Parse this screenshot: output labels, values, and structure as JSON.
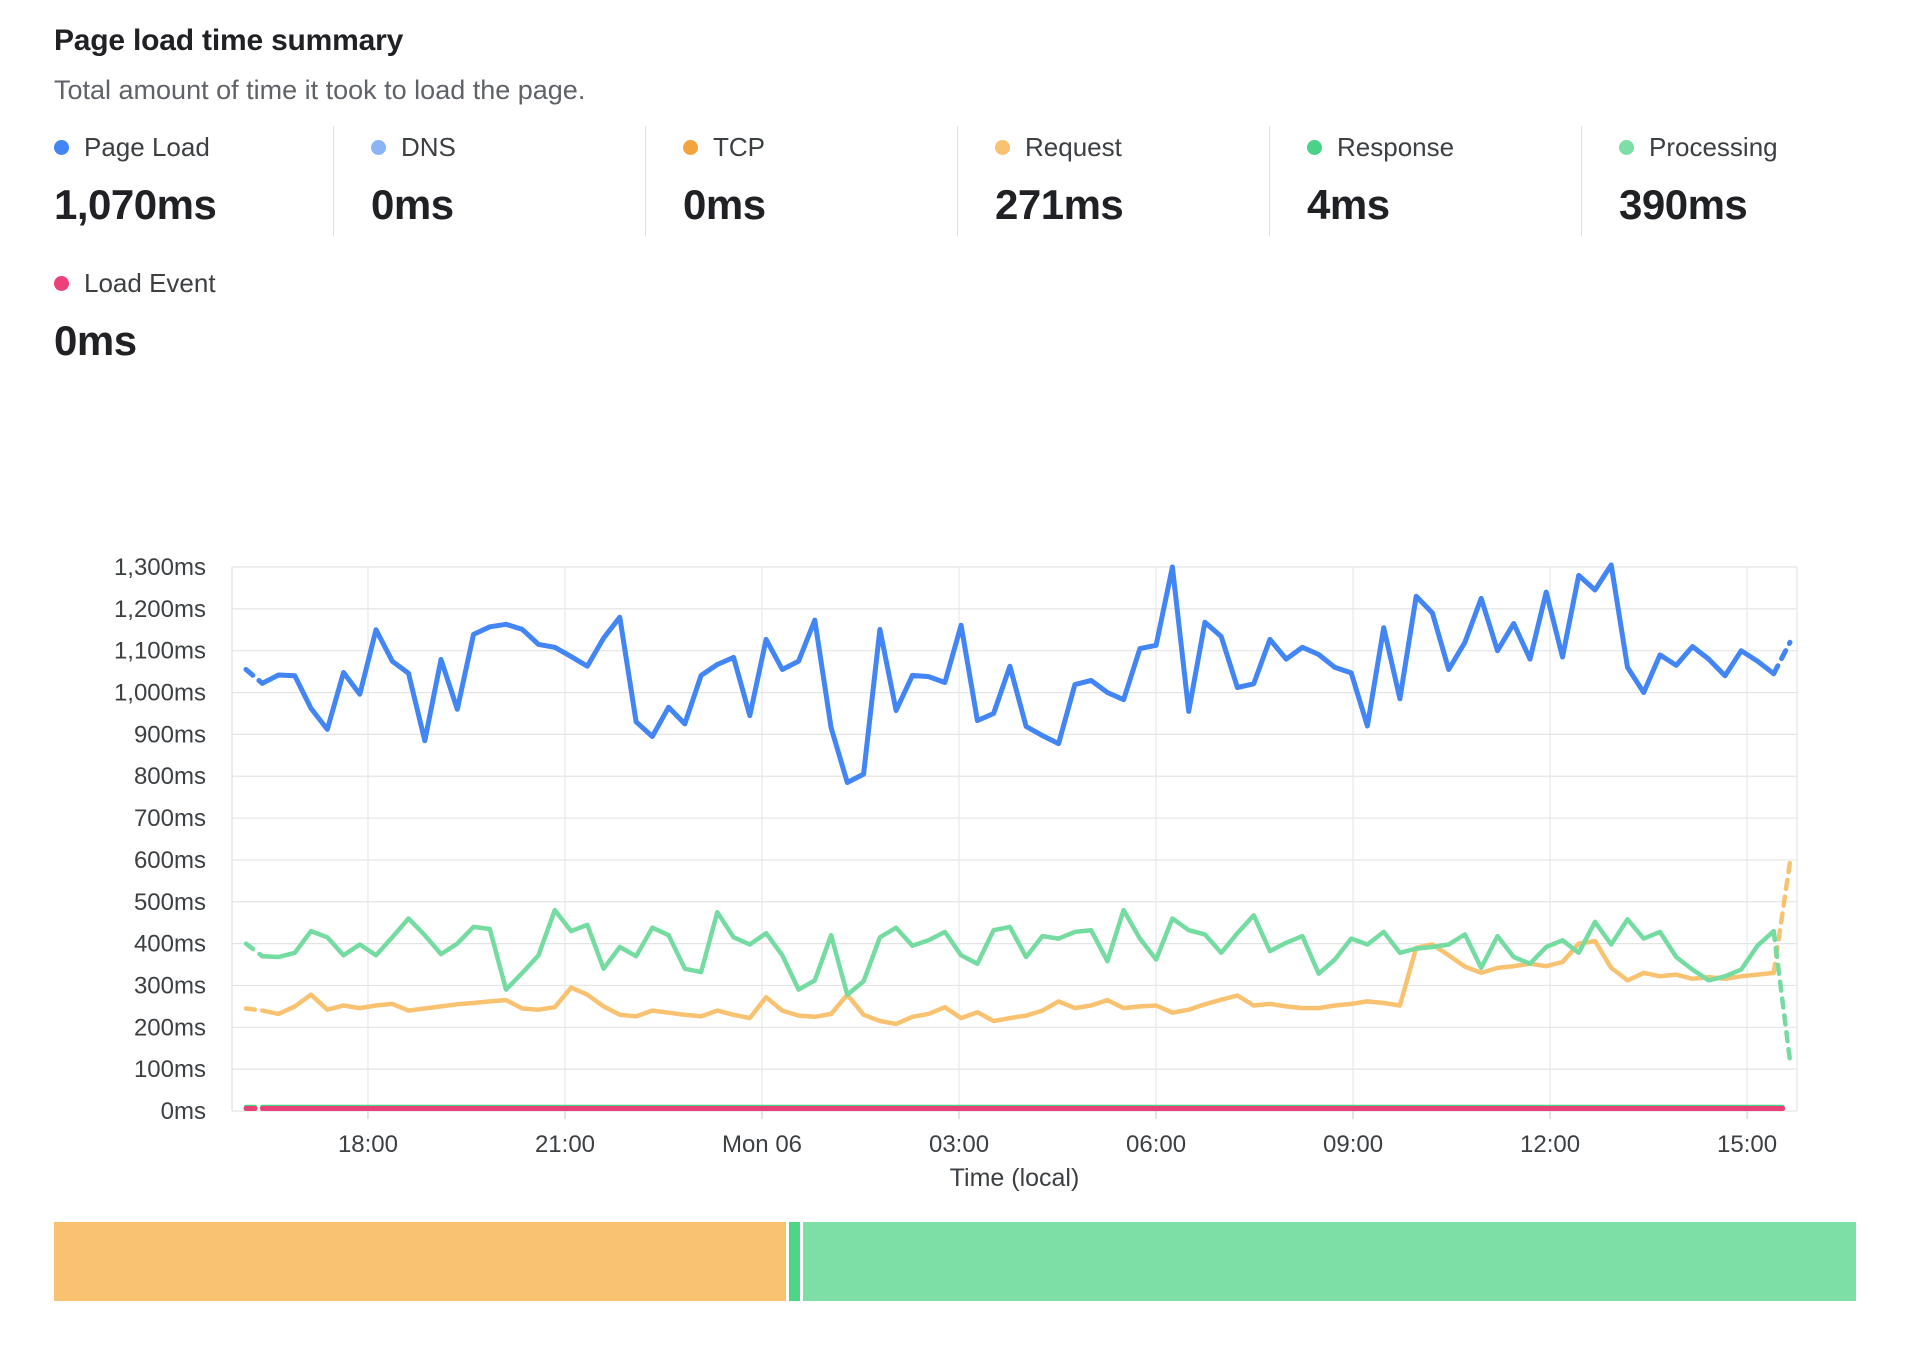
{
  "header": {
    "title": "Page load time summary",
    "subtitle": "Total amount of time it took to load the page."
  },
  "stats": [
    {
      "id": "page-load",
      "label": "Page Load",
      "value": "1,070ms",
      "color": "#4285f4"
    },
    {
      "id": "dns",
      "label": "DNS",
      "value": "0ms",
      "color": "#8ab4f8"
    },
    {
      "id": "tcp",
      "label": "TCP",
      "value": "0ms",
      "color": "#f5a33c"
    },
    {
      "id": "request",
      "label": "Request",
      "value": "271ms",
      "color": "#f8c271"
    },
    {
      "id": "response",
      "label": "Response",
      "value": "4ms",
      "color": "#48d386"
    },
    {
      "id": "processing",
      "label": "Processing",
      "value": "390ms",
      "color": "#7ddfa5"
    }
  ],
  "stats_row2": [
    {
      "id": "load-event",
      "label": "Load Event",
      "value": "0ms",
      "color": "#ee4079"
    }
  ],
  "chart_data": {
    "type": "line",
    "title": "Page load time summary",
    "xlabel": "Time (local)",
    "ylabel": "",
    "ylim": [
      0,
      1300
    ],
    "grid": true,
    "legend_position": "top-stats",
    "points": 96,
    "y_ticks": [
      {
        "v": 0,
        "label": "0ms"
      },
      {
        "v": 100,
        "label": "100ms"
      },
      {
        "v": 200,
        "label": "200ms"
      },
      {
        "v": 300,
        "label": "300ms"
      },
      {
        "v": 400,
        "label": "400ms"
      },
      {
        "v": 500,
        "label": "500ms"
      },
      {
        "v": 600,
        "label": "600ms"
      },
      {
        "v": 700,
        "label": "700ms"
      },
      {
        "v": 800,
        "label": "800ms"
      },
      {
        "v": 900,
        "label": "900ms"
      },
      {
        "v": 1000,
        "label": "1,000ms"
      },
      {
        "v": 1100,
        "label": "1,100ms"
      },
      {
        "v": 1200,
        "label": "1,200ms"
      },
      {
        "v": 1300,
        "label": "1,300ms"
      }
    ],
    "x_ticks": [
      {
        "label": "18:00",
        "pos": 0.079
      },
      {
        "label": "21:00",
        "pos": 0.2066
      },
      {
        "label": "Mon 06",
        "pos": 0.3342
      },
      {
        "label": "03:00",
        "pos": 0.4618
      },
      {
        "label": "06:00",
        "pos": 0.5894
      },
      {
        "label": "09:00",
        "pos": 0.717
      },
      {
        "label": "12:00",
        "pos": 0.8446
      },
      {
        "label": "15:00",
        "pos": 0.9722
      }
    ],
    "dashed_end_segments": true,
    "series": [
      {
        "id": "request",
        "name": "Request",
        "color": "#f8c271",
        "width": 4.5,
        "values": [
          245,
          240,
          232,
          250,
          278,
          242,
          252,
          246,
          252,
          256,
          240,
          245,
          250,
          255,
          258,
          262,
          265,
          245,
          242,
          248,
          295,
          278,
          250,
          230,
          226,
          240,
          235,
          230,
          226,
          240,
          230,
          222,
          272,
          240,
          228,
          225,
          232,
          278,
          230,
          215,
          208,
          225,
          232,
          248,
          222,
          236,
          215,
          222,
          228,
          240,
          262,
          246,
          252,
          265,
          246,
          250,
          252,
          235,
          242,
          255,
          266,
          276,
          252,
          256,
          250,
          246,
          246,
          252,
          256,
          262,
          258,
          252,
          390,
          398,
          372,
          345,
          330,
          342,
          346,
          352,
          346,
          356,
          400,
          406,
          342,
          312,
          330,
          322,
          326,
          316,
          320,
          316,
          322,
          326,
          330,
          595
        ]
      },
      {
        "id": "response",
        "name": "Response",
        "color": "#48d386",
        "width": 4,
        "constant": 10
      },
      {
        "id": "processing",
        "name": "Processing",
        "color": "#74dca0",
        "width": 4.5,
        "values": [
          400,
          370,
          368,
          378,
          430,
          415,
          372,
          398,
          372,
          415,
          460,
          420,
          375,
          400,
          440,
          435,
          290,
          330,
          372,
          480,
          430,
          445,
          340,
          392,
          370,
          438,
          420,
          340,
          332,
          475,
          415,
          398,
          425,
          372,
          290,
          312,
          420,
          278,
          310,
          415,
          438,
          395,
          408,
          428,
          372,
          352,
          432,
          440,
          368,
          418,
          412,
          428,
          432,
          358,
          480,
          412,
          362,
          460,
          432,
          422,
          378,
          425,
          468,
          382,
          402,
          418,
          328,
          362,
          412,
          398,
          428,
          378,
          388,
          392,
          398,
          422,
          342,
          418,
          368,
          352,
          392,
          408,
          378,
          452,
          398,
          458,
          412,
          428,
          368,
          338,
          312,
          322,
          338,
          395,
          430,
          120
        ]
      },
      {
        "id": "load-event",
        "name": "Load Event",
        "color": "#e84179",
        "width": 5,
        "constant": 6
      },
      {
        "id": "page-load",
        "name": "Page Load",
        "color": "#4285f4",
        "width": 5,
        "values": [
          1055,
          1022,
          1042,
          1040,
          962,
          912,
          1048,
          996,
          1150,
          1075,
          1046,
          885,
          1079,
          960,
          1139,
          1157,
          1163,
          1151,
          1115,
          1108,
          1086,
          1063,
          1130,
          1180,
          930,
          895,
          965,
          925,
          1041,
          1067,
          1084,
          945,
          1127,
          1055,
          1075,
          1173,
          916,
          785,
          805,
          1151,
          957,
          1041,
          1038,
          1024,
          1161,
          933,
          950,
          1063,
          919,
          897,
          878,
          1019,
          1029,
          1000,
          983,
          1105,
          1113,
          1300,
          955,
          1168,
          1134,
          1012,
          1021,
          1127,
          1080,
          1108,
          1091,
          1060,
          1047,
          920,
          1155,
          985,
          1230,
          1190,
          1055,
          1120,
          1225,
          1100,
          1165,
          1080,
          1240,
          1085,
          1280,
          1245,
          1305,
          1060,
          1000,
          1090,
          1065,
          1110,
          1080,
          1040,
          1100,
          1075,
          1045,
          1120
        ]
      }
    ]
  },
  "breakdown_bar": {
    "segments": [
      {
        "id": "request",
        "name": "Request",
        "value": 271,
        "color": "#f8c271"
      },
      {
        "id": "response",
        "name": "Response",
        "value": 4,
        "color": "#4ed687"
      },
      {
        "id": "processing",
        "name": "Processing",
        "value": 390,
        "color": "#7ddfa5"
      }
    ]
  }
}
